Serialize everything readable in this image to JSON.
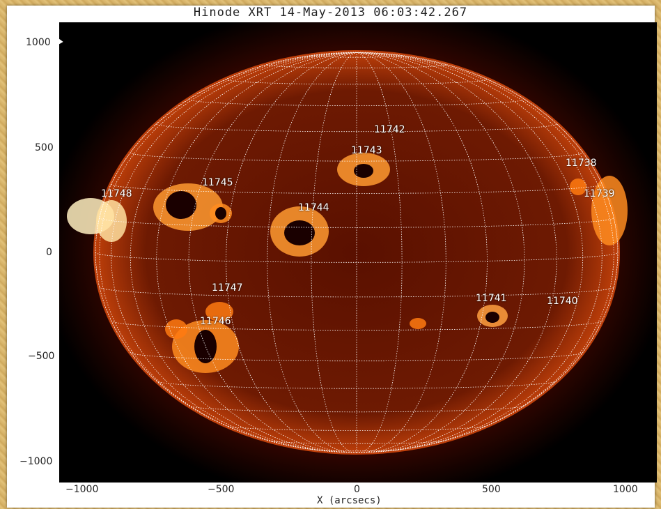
{
  "title": "Hinode XRT 14-May-2013 06:03:42.267",
  "xlabel": "X (arcsecs)",
  "y_ticks": [
    "1000",
    "500",
    "0",
    "−500",
    "−1000"
  ],
  "x_ticks": [
    "−1000",
    "−500",
    "0",
    "500",
    "1000"
  ],
  "active_regions": [
    {
      "label": "11742"
    },
    {
      "label": "11743"
    },
    {
      "label": "11738"
    },
    {
      "label": "11739"
    },
    {
      "label": "11748"
    },
    {
      "label": "11745"
    },
    {
      "label": "11744"
    },
    {
      "label": "11747"
    },
    {
      "label": "11746"
    },
    {
      "label": "11741"
    },
    {
      "label": "11740"
    }
  ],
  "colors": {
    "sun_core": "#c03a00",
    "sun_edge": "#5a0a00",
    "bright": "#ffe8b0",
    "grid": "#ffffff"
  }
}
